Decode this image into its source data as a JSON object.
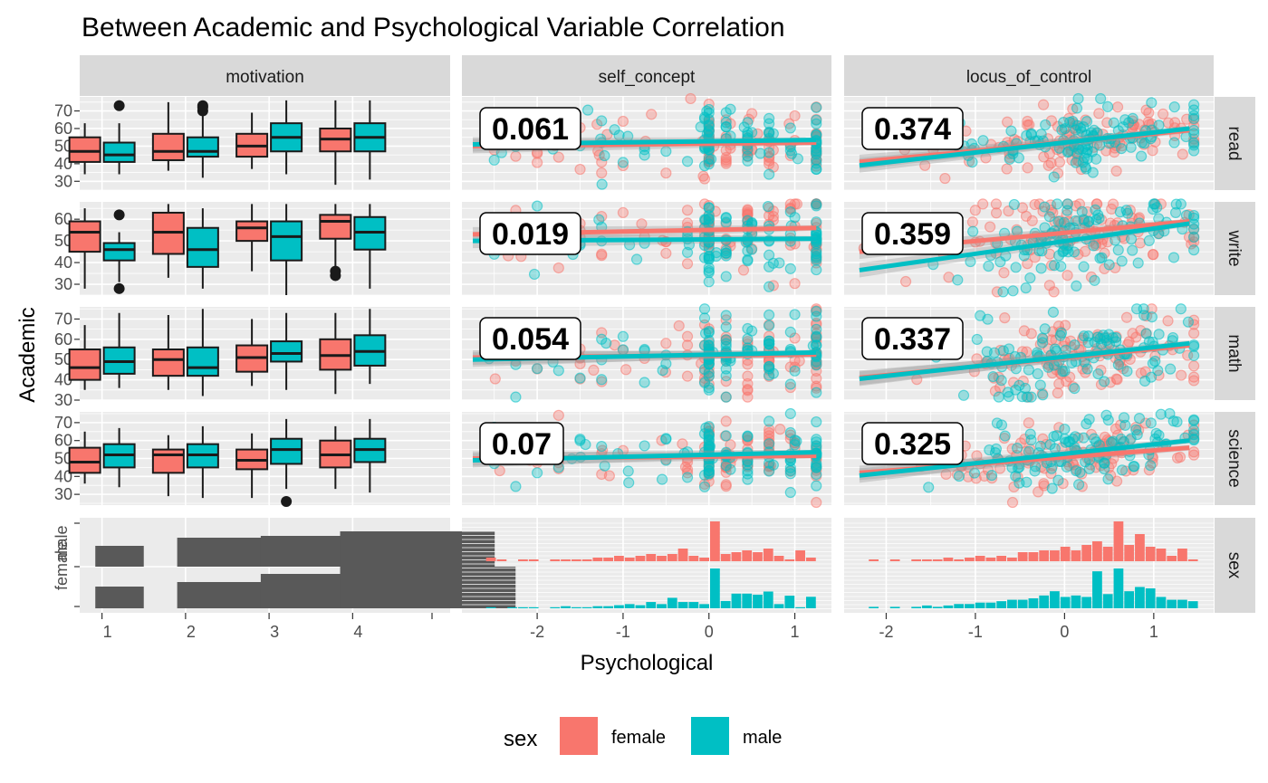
{
  "chart_data": {
    "type": "scatter",
    "title": "Between Academic and Psychological Variable Correlation",
    "xlabel": "Psychological",
    "ylabel": "Academic",
    "columns": [
      "motivation",
      "self_concept",
      "locus_of_control"
    ],
    "rows": [
      "read",
      "write",
      "math",
      "science",
      "sex"
    ],
    "legend": {
      "title": "sex",
      "position": "bottom",
      "entries": [
        {
          "label": "female",
          "color": "#F8766D"
        },
        {
          "label": "male",
          "color": "#00BFC4"
        }
      ]
    },
    "motivation_x_ticks": [
      "1",
      "2",
      "3",
      "4"
    ],
    "psych_x_ticks": [
      "-2",
      "-1",
      "0",
      "1"
    ],
    "self_concept_xlim": [
      -2.75,
      1.3
    ],
    "locus_of_control_xlim": [
      -2.35,
      1.55
    ],
    "row_y": {
      "read": {
        "ylim": [
          25,
          78
        ],
        "ticks": [
          "30",
          "40",
          "50",
          "60",
          "70"
        ]
      },
      "write": {
        "ylim": [
          25,
          68
        ],
        "ticks": [
          "30",
          "40",
          "50",
          "60"
        ]
      },
      "math": {
        "ylim": [
          30,
          76
        ],
        "ticks": [
          "30",
          "40",
          "50",
          "60",
          "70"
        ]
      },
      "science": {
        "ylim": [
          24,
          76
        ],
        "ticks": [
          "30",
          "40",
          "50",
          "60",
          "70"
        ]
      }
    },
    "sex_y_ticks": [
      "female",
      "male"
    ],
    "boxplots": {
      "read": {
        "female": [
          [
            34,
            41,
            47,
            55,
            63
          ],
          [
            36,
            42,
            47,
            57,
            75
          ],
          [
            37,
            44,
            50,
            57,
            69
          ],
          [
            28,
            47,
            54,
            60,
            76
          ]
        ],
        "male": [
          [
            34,
            41,
            45,
            52,
            63
          ],
          [
            32,
            44,
            47,
            55,
            68
          ],
          [
            34,
            47,
            55,
            63,
            76
          ],
          [
            31,
            47,
            55,
            63,
            76
          ]
        ],
        "outliers": [
          {
            "motivation": 1,
            "sex": "male",
            "values": [
              73
            ]
          },
          {
            "motivation": 2,
            "sex": "male",
            "values": [
              73,
              72,
              70
            ]
          }
        ]
      },
      "write": {
        "female": [
          [
            28,
            45,
            54,
            59,
            65
          ],
          [
            33,
            44,
            54,
            63,
            67
          ],
          [
            36,
            50,
            56,
            59,
            67
          ],
          [
            38,
            51,
            59,
            62,
            67
          ]
        ],
        "male": [
          [
            31,
            41,
            46,
            49,
            54
          ],
          [
            28,
            38,
            46,
            56,
            65
          ],
          [
            25,
            41,
            52,
            59,
            67
          ],
          [
            28,
            46,
            54,
            61,
            67
          ]
        ],
        "outliers": [
          {
            "motivation": 1,
            "sex": "male",
            "values": [
              62,
              28
            ]
          },
          {
            "motivation": 4,
            "sex": "female",
            "values": [
              36,
              34
            ]
          }
        ]
      },
      "math": {
        "female": [
          [
            35,
            40,
            46,
            55,
            67
          ],
          [
            35,
            42,
            50,
            55,
            72
          ],
          [
            37,
            44,
            51,
            57,
            70
          ],
          [
            33,
            45,
            52,
            60,
            73
          ]
        ],
        "male": [
          [
            36,
            43,
            49,
            56,
            73
          ],
          [
            32,
            42,
            46,
            56,
            75
          ],
          [
            35,
            49,
            53,
            59,
            73
          ],
          [
            38,
            47,
            54,
            62,
            75
          ]
        ],
        "outliers": []
      },
      "science": {
        "female": [
          [
            36,
            42,
            48,
            56,
            65
          ],
          [
            29,
            42,
            52,
            55,
            63
          ],
          [
            28,
            44,
            49,
            55,
            64
          ],
          [
            33,
            45,
            52,
            60,
            68
          ]
        ],
        "male": [
          [
            34,
            45,
            52,
            58,
            67
          ],
          [
            28,
            45,
            52,
            58,
            68
          ],
          [
            33,
            47,
            55,
            61,
            72
          ],
          [
            31,
            48,
            55,
            61,
            72
          ]
        ],
        "outliers": [
          {
            "motivation": 3,
            "sex": "male",
            "values": [
              26
            ]
          }
        ]
      }
    },
    "correlations": {
      "self_concept": {
        "read": "0.061",
        "write": "0.019",
        "math": "0.054",
        "science": "0.07"
      },
      "locus_of_control": {
        "read": "0.374",
        "write": "0.359",
        "math": "0.337",
        "science": "0.325"
      }
    },
    "fit_lines": {
      "self_concept": {
        "read": {
          "female": [
            [
              -2.75,
              50
            ],
            [
              1.25,
              52
            ]
          ],
          "male": [
            [
              -2.75,
              51
            ],
            [
              1.25,
              53.5
            ]
          ]
        },
        "write": {
          "female": [
            [
              -2.75,
              53
            ],
            [
              1.25,
              56
            ]
          ],
          "male": [
            [
              -2.75,
              50
            ],
            [
              1.25,
              51
            ]
          ]
        },
        "math": {
          "female": [
            [
              -2.75,
              51
            ],
            [
              1.25,
              52.5
            ]
          ],
          "male": [
            [
              -2.75,
              50
            ],
            [
              1.25,
              53.5
            ]
          ]
        },
        "science": {
          "female": [
            [
              -2.75,
              50
            ],
            [
              1.25,
              51.5
            ]
          ],
          "male": [
            [
              -2.75,
              49
            ],
            [
              1.25,
              53.5
            ]
          ]
        }
      },
      "locus_of_control": {
        "read": {
          "female": [
            [
              -2.3,
              41
            ],
            [
              1.4,
              59
            ]
          ],
          "male": [
            [
              -2.3,
              39
            ],
            [
              1.4,
              60
            ]
          ]
        },
        "write": {
          "female": [
            [
              -2.3,
              45
            ],
            [
              1.4,
              59
            ]
          ],
          "male": [
            [
              -2.3,
              36.5
            ],
            [
              1.4,
              58
            ]
          ]
        },
        "math": {
          "female": [
            [
              -2.3,
              41
            ],
            [
              1.4,
              57
            ]
          ],
          "male": [
            [
              -2.3,
              40.5
            ],
            [
              1.4,
              58
            ]
          ]
        },
        "science": {
          "female": [
            [
              -2.3,
              42
            ],
            [
              1.4,
              56
            ]
          ],
          "male": [
            [
              -2.3,
              40.5
            ],
            [
              1.4,
              60
            ]
          ]
        }
      }
    },
    "motivation_sex_bars": {
      "female": [
        [
          0.92,
          0.5
        ],
        [
          1.9,
          2.6
        ],
        [
          2.9,
          3.7
        ],
        [
          3.85,
          4.7
        ]
      ],
      "male": [
        [
          0.92,
          0.5
        ],
        [
          1.9,
          2.55
        ],
        [
          2.9,
          3.75
        ],
        [
          3.85,
          4.95
        ]
      ]
    },
    "sex_histograms": {
      "self_concept": {
        "female": [
          2,
          1,
          0,
          1,
          1,
          0,
          1,
          1,
          1,
          1,
          2,
          2,
          3,
          2,
          3,
          4,
          3,
          4,
          7,
          3,
          2,
          22,
          4,
          5,
          6,
          5,
          7,
          3,
          1,
          6,
          2
        ],
        "male": [
          1,
          0,
          1,
          1,
          1,
          0,
          1,
          2,
          1,
          1,
          2,
          2,
          3,
          4,
          3,
          6,
          4,
          10,
          6,
          6,
          4,
          38,
          7,
          14,
          14,
          13,
          16,
          4,
          12,
          1,
          11
        ]
      },
      "locus_of_control": {
        "female": [
          1,
          0,
          1,
          0,
          1,
          1,
          1,
          2,
          1,
          2,
          3,
          2,
          3,
          2,
          5,
          5,
          6,
          6,
          8,
          6,
          9,
          11,
          8,
          22,
          9,
          15,
          8,
          7,
          3,
          7,
          1
        ],
        "male": [
          1,
          0,
          1,
          0,
          1,
          2,
          1,
          2,
          3,
          3,
          4,
          4,
          5,
          6,
          6,
          7,
          9,
          12,
          8,
          9,
          8,
          26,
          10,
          28,
          12,
          15,
          14,
          8,
          6,
          6,
          5
        ]
      }
    }
  }
}
